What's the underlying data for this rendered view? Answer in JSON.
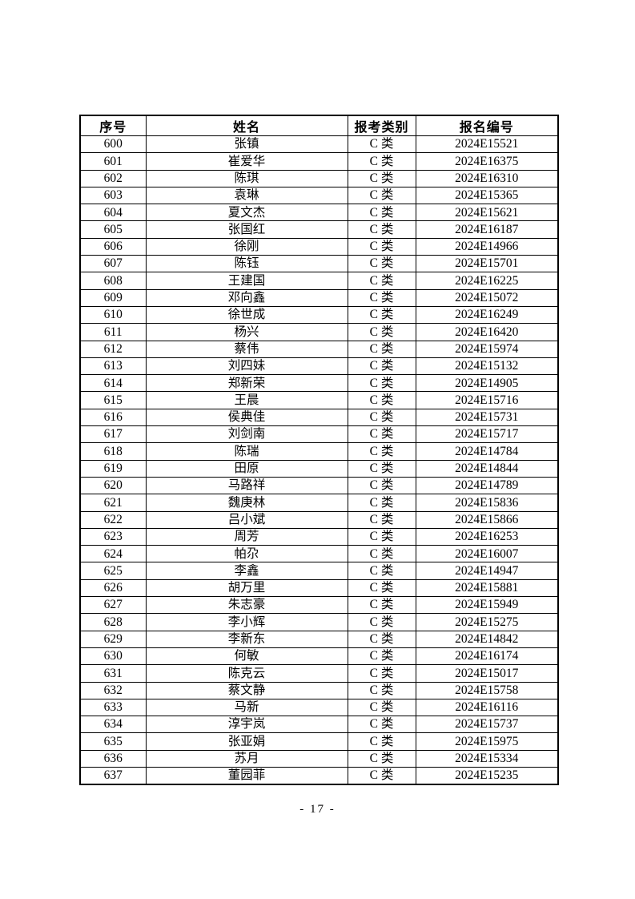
{
  "footer": {
    "page_number": "- 17 -"
  },
  "table": {
    "headers": [
      "序号",
      "姓名",
      "报考类别",
      "报名编号"
    ],
    "rows": [
      {
        "no": "600",
        "name": "张镇",
        "category": "C 类",
        "reg_no": "2024E15521"
      },
      {
        "no": "601",
        "name": "崔爱华",
        "category": "C 类",
        "reg_no": "2024E16375"
      },
      {
        "no": "602",
        "name": "陈琪",
        "category": "C 类",
        "reg_no": "2024E16310"
      },
      {
        "no": "603",
        "name": "袁琳",
        "category": "C 类",
        "reg_no": "2024E15365"
      },
      {
        "no": "604",
        "name": "夏文杰",
        "category": "C 类",
        "reg_no": "2024E15621"
      },
      {
        "no": "605",
        "name": "张国红",
        "category": "C 类",
        "reg_no": "2024E16187"
      },
      {
        "no": "606",
        "name": "徐刚",
        "category": "C 类",
        "reg_no": "2024E14966"
      },
      {
        "no": "607",
        "name": "陈钰",
        "category": "C 类",
        "reg_no": "2024E15701"
      },
      {
        "no": "608",
        "name": "王建国",
        "category": "C 类",
        "reg_no": "2024E16225"
      },
      {
        "no": "609",
        "name": "邓向鑫",
        "category": "C 类",
        "reg_no": "2024E15072"
      },
      {
        "no": "610",
        "name": "徐世成",
        "category": "C 类",
        "reg_no": "2024E16249"
      },
      {
        "no": "611",
        "name": "杨兴",
        "category": "C 类",
        "reg_no": "2024E16420"
      },
      {
        "no": "612",
        "name": "蔡伟",
        "category": "C 类",
        "reg_no": "2024E15974"
      },
      {
        "no": "613",
        "name": "刘四妹",
        "category": "C 类",
        "reg_no": "2024E15132"
      },
      {
        "no": "614",
        "name": "郑新荣",
        "category": "C 类",
        "reg_no": "2024E14905"
      },
      {
        "no": "615",
        "name": "王晨",
        "category": "C 类",
        "reg_no": "2024E15716"
      },
      {
        "no": "616",
        "name": "侯典佳",
        "category": "C 类",
        "reg_no": "2024E15731"
      },
      {
        "no": "617",
        "name": "刘剑南",
        "category": "C 类",
        "reg_no": "2024E15717"
      },
      {
        "no": "618",
        "name": "陈瑞",
        "category": "C 类",
        "reg_no": "2024E14784"
      },
      {
        "no": "619",
        "name": "田原",
        "category": "C 类",
        "reg_no": "2024E14844"
      },
      {
        "no": "620",
        "name": "马路祥",
        "category": "C 类",
        "reg_no": "2024E14789"
      },
      {
        "no": "621",
        "name": "魏庚林",
        "category": "C 类",
        "reg_no": "2024E15836"
      },
      {
        "no": "622",
        "name": "吕小斌",
        "category": "C 类",
        "reg_no": "2024E15866"
      },
      {
        "no": "623",
        "name": "周芳",
        "category": "C 类",
        "reg_no": "2024E16253"
      },
      {
        "no": "624",
        "name": "帕尕",
        "category": "C 类",
        "reg_no": "2024E16007"
      },
      {
        "no": "625",
        "name": "李鑫",
        "category": "C 类",
        "reg_no": "2024E14947"
      },
      {
        "no": "626",
        "name": "胡万里",
        "category": "C 类",
        "reg_no": "2024E15881"
      },
      {
        "no": "627",
        "name": "朱志豪",
        "category": "C 类",
        "reg_no": "2024E15949"
      },
      {
        "no": "628",
        "name": "李小辉",
        "category": "C 类",
        "reg_no": "2024E15275"
      },
      {
        "no": "629",
        "name": "李新东",
        "category": "C 类",
        "reg_no": "2024E14842"
      },
      {
        "no": "630",
        "name": "何敏",
        "category": "C 类",
        "reg_no": "2024E16174"
      },
      {
        "no": "631",
        "name": "陈克云",
        "category": "C 类",
        "reg_no": "2024E15017"
      },
      {
        "no": "632",
        "name": "蔡文静",
        "category": "C 类",
        "reg_no": "2024E15758"
      },
      {
        "no": "633",
        "name": "马新",
        "category": "C 类",
        "reg_no": "2024E16116"
      },
      {
        "no": "634",
        "name": "淳宇岚",
        "category": "C 类",
        "reg_no": "2024E15737"
      },
      {
        "no": "635",
        "name": "张亚娟",
        "category": "C 类",
        "reg_no": "2024E15975"
      },
      {
        "no": "636",
        "name": "苏月",
        "category": "C 类",
        "reg_no": "2024E15334"
      },
      {
        "no": "637",
        "name": "董园菲",
        "category": "C 类",
        "reg_no": "2024E15235"
      }
    ]
  }
}
